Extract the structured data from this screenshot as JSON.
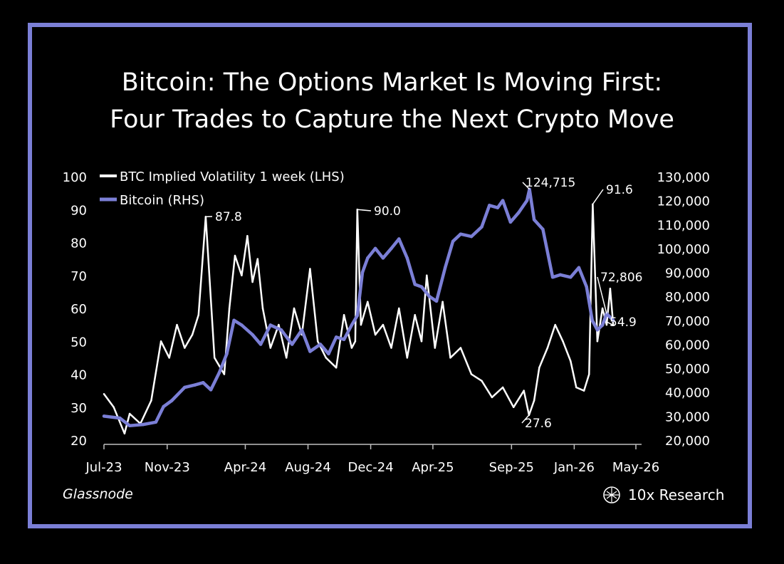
{
  "title_line1": "Bitcoin: The Options Market Is Moving First:",
  "title_line2": "Four Trades to Capture the Next Crypto Move",
  "source": "Glassnode",
  "brand": "10x Research",
  "colors": {
    "frame": "#7b7fd6",
    "btc": "#7b7fd6",
    "iv": "#ffffff",
    "background": "#000000"
  },
  "chart_data": {
    "type": "line",
    "title": "",
    "x_tick_labels": [
      "Jul-23",
      "Nov-23",
      "Apr-24",
      "Aug-24",
      "Dec-24",
      "Apr-25",
      "Sep-25",
      "Jan-26",
      "May-26"
    ],
    "y_left": {
      "ticks": [
        20,
        30,
        40,
        50,
        60,
        70,
        80,
        90,
        100
      ],
      "range": [
        20,
        100
      ]
    },
    "y_right": {
      "ticks": [
        "20,000",
        "30,000",
        "40,000",
        "50,000",
        "60,000",
        "70,000",
        "80,000",
        "90,000",
        "100,000",
        "110,000",
        "120,000",
        "130,000"
      ],
      "range": [
        20000,
        130000
      ]
    },
    "legend": [
      "BTC Implied Volatility 1 week (LHS)",
      "Bitcoin (RHS)"
    ],
    "annotations": [
      "87.8",
      "90.0",
      "124,715",
      "91.6",
      "72,806",
      "54.9",
      "27.6"
    ],
    "series": [
      {
        "name": "BTC Implied Volatility 1 week (LHS)",
        "axis": "left",
        "x": [
          "2023-07-01",
          "2023-07-20",
          "2023-08-10",
          "2023-08-20",
          "2023-09-10",
          "2023-10-01",
          "2023-10-20",
          "2023-11-05",
          "2023-11-20",
          "2023-12-05",
          "2023-12-20",
          "2024-01-01",
          "2024-01-15",
          "2024-02-01",
          "2024-02-20",
          "2024-03-01",
          "2024-03-12",
          "2024-03-25",
          "2024-04-05",
          "2024-04-15",
          "2024-04-25",
          "2024-05-05",
          "2024-05-20",
          "2024-06-05",
          "2024-06-20",
          "2024-07-05",
          "2024-07-20",
          "2024-08-05",
          "2024-08-20",
          "2024-09-05",
          "2024-09-25",
          "2024-10-10",
          "2024-10-25",
          "2024-11-01",
          "2024-11-05",
          "2024-11-12",
          "2024-11-25",
          "2024-12-10",
          "2024-12-25",
          "2025-01-10",
          "2025-01-25",
          "2025-02-10",
          "2025-02-25",
          "2025-03-10",
          "2025-03-20",
          "2025-04-05",
          "2025-04-20",
          "2025-05-05",
          "2025-05-25",
          "2025-06-15",
          "2025-07-05",
          "2025-07-25",
          "2025-08-15",
          "2025-09-05",
          "2025-09-25",
          "2025-10-05",
          "2025-10-15",
          "2025-10-25",
          "2025-11-10",
          "2025-11-25",
          "2025-12-10",
          "2025-12-25",
          "2026-01-05",
          "2026-01-20",
          "2026-01-30",
          "2026-02-06",
          "2026-02-15",
          "2026-02-25",
          "2026-03-05",
          "2026-03-12",
          "2026-03-18"
        ],
        "values": [
          34,
          30,
          22,
          28,
          25,
          32,
          50,
          45,
          55,
          48,
          52,
          58,
          87.8,
          45,
          40,
          60,
          76,
          70,
          82,
          68,
          75,
          60,
          48,
          55,
          45,
          60,
          52,
          72,
          50,
          45,
          42,
          58,
          48,
          50,
          90.0,
          55,
          62,
          52,
          55,
          48,
          60,
          45,
          58,
          50,
          70,
          48,
          62,
          45,
          48,
          40,
          38,
          33,
          36,
          30,
          35,
          27.6,
          32,
          42,
          48,
          55,
          50,
          44,
          36,
          35,
          40,
          91.6,
          50,
          60,
          55,
          66,
          54.9
        ]
      },
      {
        "name": "Bitcoin (RHS)",
        "axis": "right",
        "x": [
          "2023-07-01",
          "2023-08-01",
          "2023-08-20",
          "2023-09-15",
          "2023-10-10",
          "2023-10-25",
          "2023-11-10",
          "2023-12-05",
          "2023-12-25",
          "2024-01-10",
          "2024-01-25",
          "2024-02-10",
          "2024-02-25",
          "2024-03-10",
          "2024-03-25",
          "2024-04-15",
          "2024-05-01",
          "2024-05-20",
          "2024-06-10",
          "2024-07-01",
          "2024-07-20",
          "2024-08-05",
          "2024-08-25",
          "2024-09-10",
          "2024-09-25",
          "2024-10-10",
          "2024-10-25",
          "2024-11-05",
          "2024-11-15",
          "2024-11-25",
          "2024-12-10",
          "2024-12-25",
          "2025-01-10",
          "2025-01-25",
          "2025-02-10",
          "2025-02-25",
          "2025-03-10",
          "2025-03-25",
          "2025-04-08",
          "2025-04-25",
          "2025-05-10",
          "2025-05-25",
          "2025-06-15",
          "2025-07-05",
          "2025-07-20",
          "2025-08-05",
          "2025-08-15",
          "2025-08-30",
          "2025-09-15",
          "2025-10-01",
          "2025-10-06",
          "2025-10-15",
          "2025-11-01",
          "2025-11-20",
          "2025-12-05",
          "2025-12-25",
          "2026-01-10",
          "2026-01-25",
          "2026-02-05",
          "2026-02-15",
          "2026-02-25",
          "2026-03-05",
          "2026-03-18"
        ],
        "values": [
          30000,
          29200,
          26000,
          26500,
          27500,
          34000,
          36500,
          42000,
          43000,
          44000,
          41000,
          48000,
          56000,
          70000,
          68000,
          64000,
          60000,
          68000,
          66000,
          60000,
          66000,
          57000,
          60000,
          56000,
          63000,
          62000,
          68000,
          72000,
          90000,
          96000,
          100000,
          96000,
          100000,
          104000,
          96000,
          85000,
          84000,
          80000,
          78000,
          92000,
          103000,
          106000,
          105000,
          109000,
          118000,
          117000,
          120000,
          111000,
          115000,
          120000,
          124715,
          112000,
          108000,
          88000,
          89000,
          88000,
          92000,
          84000,
          70000,
          66000,
          68000,
          72806,
          70000
        ]
      }
    ]
  }
}
